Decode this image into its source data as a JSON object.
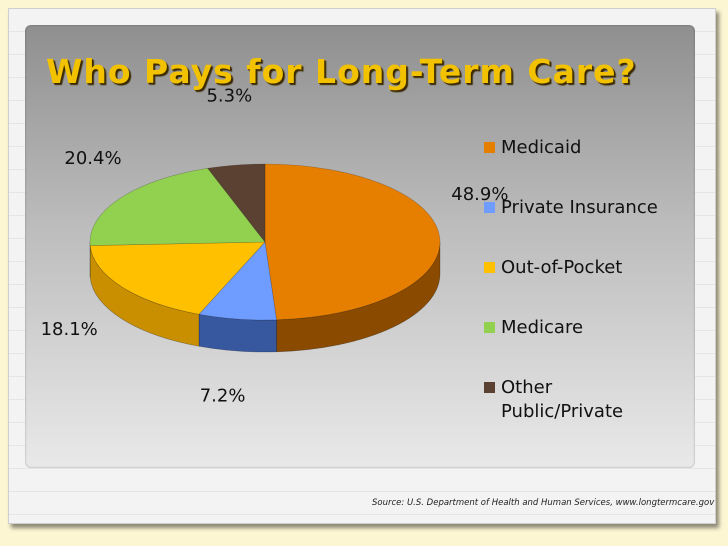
{
  "title": "Who Pays for Long-Term Care?",
  "source": "Source: U.S. Department of Health and Human Services, www.longtermcare.gov",
  "chart_data": {
    "type": "pie",
    "title": "Who Pays for Long-Term Care?",
    "three_d": true,
    "legend_position": "right",
    "slices": [
      {
        "label": "Medicaid",
        "legend_lines": [
          "Medicaid"
        ],
        "value": 48.9,
        "value_label": "48.9%",
        "color": "#e67e00",
        "side_color": "#8a4a00"
      },
      {
        "label": "Private Insurance",
        "legend_lines": [
          "Private Insurance"
        ],
        "value": 7.2,
        "value_label": "7.2%",
        "color": "#6f9cff",
        "side_color": "#37579f"
      },
      {
        "label": "Out-of-Pocket",
        "legend_lines": [
          "Out-of-Pocket"
        ],
        "value": 18.1,
        "value_label": "18.1%",
        "color": "#ffc000",
        "side_color": "#c98f00"
      },
      {
        "label": "Medicare",
        "legend_lines": [
          "Medicare"
        ],
        "value": 20.4,
        "value_label": "20.4%",
        "color": "#92d050",
        "side_color": "#5e8d2c"
      },
      {
        "label": "Other Public/Private",
        "legend_lines": [
          "Other",
          "Public/Private"
        ],
        "value": 5.3,
        "value_label": "5.3%",
        "color": "#5b4131",
        "side_color": "#33241a"
      }
    ]
  }
}
